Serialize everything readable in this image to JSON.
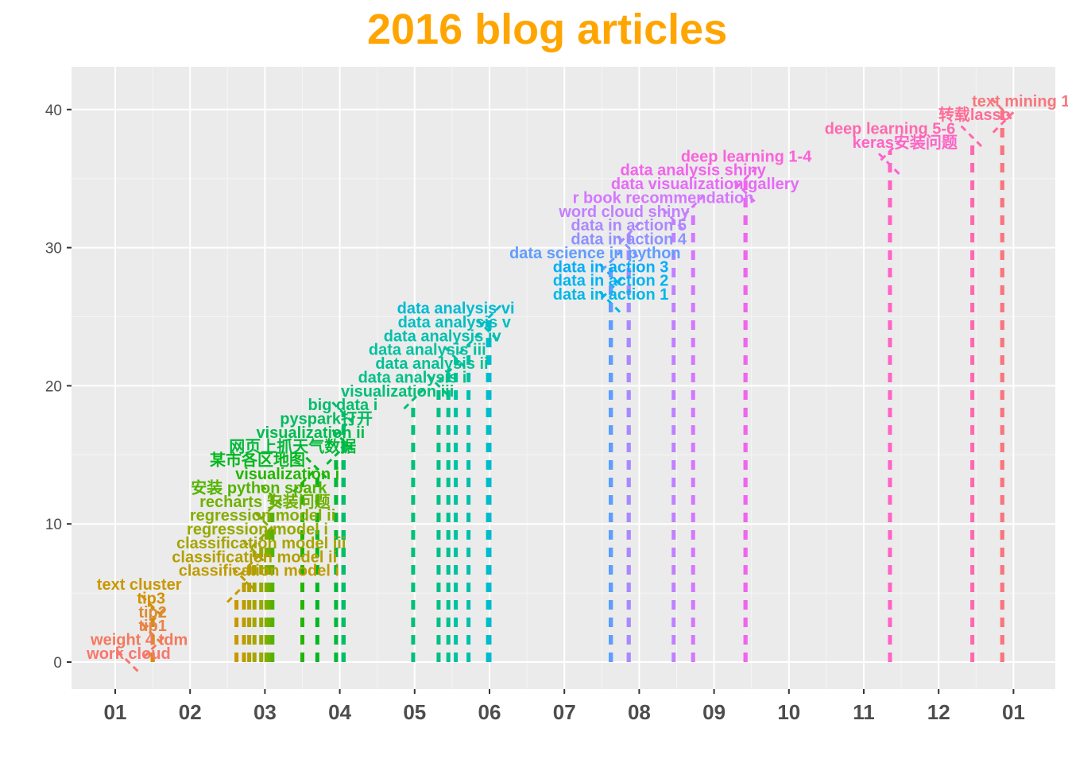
{
  "chart_data": {
    "type": "scatter",
    "title": "2016 blog articles",
    "title_color": "#FFA500",
    "xlabel": "",
    "ylabel": "",
    "x_ticks": [
      "01",
      "02",
      "03",
      "04",
      "05",
      "06",
      "07",
      "08",
      "09",
      "10",
      "11",
      "12",
      "01"
    ],
    "y_ticks": [
      "0",
      "10",
      "20",
      "30",
      "40"
    ],
    "ylim": [
      -1.8,
      43
    ],
    "grid": true,
    "legend": "none",
    "articles": [
      {
        "label": "work cloud",
        "month": 1.18,
        "value": 0,
        "color": "#F8766D",
        "label_month": 1.18
      },
      {
        "label": "weight 4 tdm",
        "month": 1.5,
        "value": 1,
        "color": "#F3795E",
        "label_month": 1.32
      },
      {
        "label": "tip1",
        "month": 1.5,
        "value": 2,
        "color": "#E8834A",
        "label_month": 1.5
      },
      {
        "label": "tip2",
        "month": 1.5,
        "value": 3,
        "color": "#DD8A32",
        "label_month": 1.5
      },
      {
        "label": "tip3",
        "month": 1.5,
        "value": 4,
        "color": "#D39100",
        "label_month": 1.48
      },
      {
        "label": "text cluster",
        "month": 2.62,
        "value": 5,
        "color": "#C99800",
        "label_month": 1.32
      },
      {
        "label": "classification model i",
        "month": 2.72,
        "value": 6,
        "color": "#BE9C00",
        "label_month": 2.92
      },
      {
        "label": "classification model ii",
        "month": 2.79,
        "value": 7,
        "color": "#B2A000",
        "label_month": 2.86
      },
      {
        "label": "classification model iii",
        "month": 2.86,
        "value": 8,
        "color": "#A5A400",
        "label_month": 2.95
      },
      {
        "label": "regression model i",
        "month": 2.95,
        "value": 9,
        "color": "#96A900",
        "label_month": 2.9
      },
      {
        "label": "regression model ii",
        "month": 3.02,
        "value": 10,
        "color": "#85AD00",
        "label_month": 2.97
      },
      {
        "label": "recharts 安装问题",
        "month": 3.06,
        "value": 11,
        "color": "#6FB100",
        "label_month": 3.0
      },
      {
        "label": "安装 python spark",
        "month": 3.1,
        "value": 12,
        "color": "#53B400",
        "label_month": 2.92
      },
      {
        "label": "visualization i",
        "month": 3.5,
        "value": 13,
        "color": "#22B600",
        "label_month": 3.3
      },
      {
        "label": "某市各区地图",
        "month": 3.7,
        "value": 14,
        "color": "#00B81D",
        "label_month": 2.9
      },
      {
        "label": "网页上抓天气数据",
        "month": 3.95,
        "value": 15,
        "color": "#00B93A",
        "label_month": 3.37
      },
      {
        "label": "visualization ii",
        "month": 4.05,
        "value": 16,
        "color": "#00BB4E",
        "label_month": 3.61
      },
      {
        "label": "pyspark打开",
        "month": 4.05,
        "value": 17,
        "color": "#00BC5E",
        "label_month": 3.82
      },
      {
        "label": "big data i",
        "month": 4.05,
        "value": 18,
        "color": "#00BE6C",
        "label_month": 4.04
      },
      {
        "label": "visualization iii",
        "month": 4.98,
        "value": 19,
        "color": "#00BF7A",
        "label_month": 4.77
      },
      {
        "label": "data analysis i",
        "month": 5.32,
        "value": 20,
        "color": "#00C087",
        "label_month": 4.97
      },
      {
        "label": "data analysis ii",
        "month": 5.45,
        "value": 21,
        "color": "#00C094",
        "label_month": 5.23
      },
      {
        "label": "data analysis iii",
        "month": 5.55,
        "value": 22,
        "color": "#00C1A0",
        "label_month": 5.17
      },
      {
        "label": "data analysis iv",
        "month": 5.72,
        "value": 23,
        "color": "#00C0AC",
        "label_month": 5.37
      },
      {
        "label": "data analysis v",
        "month": 5.98,
        "value": 24,
        "color": "#00BEBF",
        "label_month": 5.53
      },
      {
        "label": "data analysis vi",
        "month": 6.0,
        "value": 25,
        "color": "#00BBD1",
        "label_month": 5.55
      },
      {
        "label": "data in action 1",
        "month": 7.62,
        "value": 26,
        "color": "#00B7E8",
        "label_month": 7.62
      },
      {
        "label": "data in action 2",
        "month": 7.62,
        "value": 27,
        "color": "#00B3F2",
        "label_month": 7.62
      },
      {
        "label": "data in action 3",
        "month": 7.62,
        "value": 28,
        "color": "#00ADFA",
        "label_month": 7.62
      },
      {
        "label": "data science in python",
        "month": 7.62,
        "value": 29,
        "color": "#619CFF",
        "label_month": 7.41
      },
      {
        "label": "data in action 4",
        "month": 7.86,
        "value": 30,
        "color": "#8E91FF",
        "label_month": 7.86
      },
      {
        "label": "data in action 5",
        "month": 7.86,
        "value": 31,
        "color": "#AB88FF",
        "label_month": 7.86
      },
      {
        "label": "word cloud shiny",
        "month": 8.46,
        "value": 32,
        "color": "#C27FFF",
        "label_month": 7.8
      },
      {
        "label": "r book recommendation",
        "month": 8.72,
        "value": 33,
        "color": "#D576FF",
        "label_month": 8.32
      },
      {
        "label": "data visualization gallery",
        "month": 9.42,
        "value": 34,
        "color": "#E56BF7",
        "label_month": 8.88
      },
      {
        "label": "data analysis shiny",
        "month": 9.42,
        "value": 35,
        "color": "#F164EC",
        "label_month": 8.72
      },
      {
        "label": "deep learning 1-4",
        "month": 11.35,
        "value": 36,
        "color": "#FA62D9",
        "label_month": 9.43
      },
      {
        "label": "keras安装问题",
        "month": 11.35,
        "value": 37,
        "color": "#FF64C5",
        "label_month": 11.55
      },
      {
        "label": "deep learning 5-6",
        "month": 12.45,
        "value": 38,
        "color": "#FF68AE",
        "label_month": 11.35
      },
      {
        "label": "转载lasso",
        "month": 12.85,
        "value": 39,
        "color": "#FF6C96",
        "label_month": 12.48
      },
      {
        "label": "text mining 1",
        "month": 12.85,
        "value": 40,
        "color": "#F8767D",
        "label_month": 13.1
      }
    ]
  }
}
